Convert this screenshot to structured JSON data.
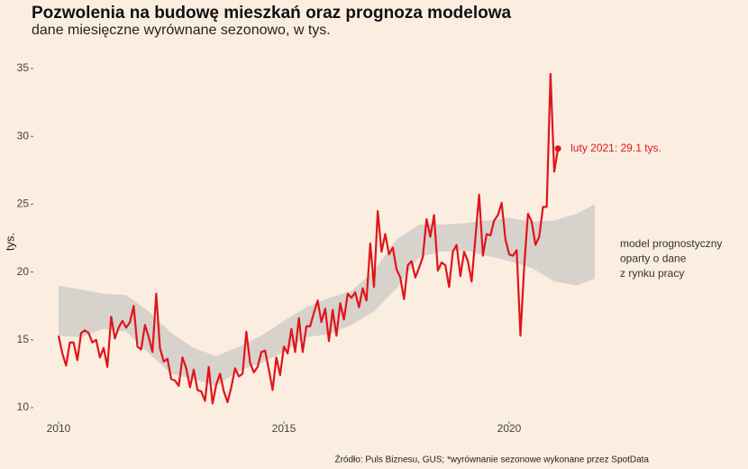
{
  "chart_data": {
    "type": "line",
    "title": "Pozwolenia na budowę mieszkań oraz prognoza modelowa",
    "subtitle": "dane miesięczne wyrównane sezonowo, w tys.",
    "y_label": "tys.",
    "source": "Źródło: Puls Biznesu, GUS; *wyrównanie sezonowe wykonane przez SpotData",
    "annotation": "luty 2021: 29.1 tys.",
    "x": [
      2010,
      2010.083,
      2010.167,
      2010.25,
      2010.333,
      2010.417,
      2010.5,
      2010.583,
      2010.667,
      2010.75,
      2010.833,
      2010.917,
      2011,
      2011.083,
      2011.167,
      2011.25,
      2011.333,
      2011.417,
      2011.5,
      2011.583,
      2011.667,
      2011.75,
      2011.833,
      2011.917,
      2012,
      2012.083,
      2012.167,
      2012.25,
      2012.333,
      2012.417,
      2012.5,
      2012.583,
      2012.667,
      2012.75,
      2012.833,
      2012.917,
      2013,
      2013.083,
      2013.167,
      2013.25,
      2013.333,
      2013.417,
      2013.5,
      2013.583,
      2013.667,
      2013.75,
      2013.833,
      2013.917,
      2014,
      2014.083,
      2014.167,
      2014.25,
      2014.333,
      2014.417,
      2014.5,
      2014.583,
      2014.667,
      2014.75,
      2014.833,
      2014.917,
      2015,
      2015.083,
      2015.167,
      2015.25,
      2015.333,
      2015.417,
      2015.5,
      2015.583,
      2015.667,
      2015.75,
      2015.833,
      2015.917,
      2016,
      2016.083,
      2016.167,
      2016.25,
      2016.333,
      2016.417,
      2016.5,
      2016.583,
      2016.667,
      2016.75,
      2016.833,
      2016.917,
      2017,
      2017.083,
      2017.167,
      2017.25,
      2017.333,
      2017.417,
      2017.5,
      2017.583,
      2017.667,
      2017.75,
      2017.833,
      2017.917,
      2018,
      2018.083,
      2018.167,
      2018.25,
      2018.333,
      2018.417,
      2018.5,
      2018.583,
      2018.667,
      2018.75,
      2018.833,
      2018.917,
      2019,
      2019.083,
      2019.167,
      2019.25,
      2019.333,
      2019.417,
      2019.5,
      2019.583,
      2019.667,
      2019.75,
      2019.833,
      2019.917,
      2020,
      2020.083,
      2020.167,
      2020.25,
      2020.333,
      2020.417,
      2020.5,
      2020.583,
      2020.667,
      2020.75,
      2020.833,
      2020.917,
      2021,
      2021.083
    ],
    "series": [
      {
        "color": "#e0151b",
        "values": [
          15.3,
          14,
          13.1,
          14.8,
          14.8,
          13.5,
          15.5,
          15.7,
          15.5,
          14.8,
          15,
          13.7,
          14.4,
          13,
          16.7,
          15.1,
          15.9,
          16.4,
          15.9,
          16.3,
          17.5,
          14.5,
          14.3,
          16.1,
          15.2,
          14.1,
          18.4,
          14.4,
          13.4,
          13.6,
          12.1,
          12,
          11.6,
          13.7,
          12.9,
          11.5,
          12.8,
          11.3,
          11.2,
          10.5,
          13,
          10.3,
          11.7,
          12.5,
          11.2,
          10.4,
          11.5,
          12.9,
          12.3,
          12.5,
          15.6,
          13.3,
          12.6,
          13,
          14.1,
          14.2,
          12.8,
          11.3,
          13.7,
          12.4,
          14.5,
          14,
          15.8,
          14.1,
          16.6,
          14.1,
          16,
          16,
          17,
          17.9,
          16.3,
          17.3,
          14.9,
          17.2,
          15.3,
          17.7,
          16.5,
          18.4,
          18.1,
          18.5,
          17.4,
          18.8,
          17.9,
          22.1,
          18.9,
          24.5,
          21.5,
          22.8,
          21.3,
          21.8,
          20.2,
          19.6,
          18,
          20.5,
          20.8,
          19.6,
          20.3,
          21.1,
          23.9,
          22.6,
          24.2,
          20.1,
          20.7,
          20.5,
          18.9,
          21.5,
          22,
          19.7,
          21.5,
          20.8,
          19.3,
          22.5,
          25.7,
          21.2,
          22.8,
          22.7,
          23.8,
          24.2,
          25.1,
          22.4,
          21.3,
          21.2,
          21.6,
          15.3,
          20.4,
          24.3,
          23.7,
          22,
          22.6,
          24.8,
          24.8,
          34.6,
          27.4,
          29.1
        ]
      }
    ],
    "band": {
      "color": "#d8d2cd",
      "label_lines": [
        "model prognostyczny",
        "oparty o dane",
        "z rynku pracy"
      ],
      "x": [
        2010,
        2010.5,
        2011,
        2011.5,
        2012,
        2012.5,
        2013,
        2013.5,
        2014,
        2014.5,
        2015,
        2015.5,
        2016,
        2016.5,
        2017,
        2017.5,
        2018,
        2018.5,
        2019,
        2019.5,
        2020,
        2020.5,
        2021,
        2021.5,
        2021.9
      ],
      "upper": [
        19.0,
        18.7,
        18.4,
        18.3,
        17.1,
        15.5,
        14.4,
        13.8,
        14.5,
        15.3,
        16.4,
        17.4,
        18.1,
        18.6,
        20.1,
        22.4,
        23.5,
        23.5,
        23.6,
        23.8,
        24.0,
        23.7,
        23.8,
        24.3,
        25.0
      ],
      "lower": [
        15.3,
        15.2,
        15.8,
        15.6,
        14.0,
        12.5,
        12.1,
        11.6,
        12.7,
        13.3,
        14.1,
        15.2,
        15.4,
        16.1,
        17.1,
        18.8,
        21.1,
        21.5,
        21.6,
        21.2,
        20.8,
        20.3,
        19.3,
        19.0,
        19.5
      ]
    },
    "xlim": [
      2009.5,
      2024.5
    ],
    "ylim": [
      9,
      35.5
    ],
    "xticks": [
      2010,
      2015,
      2020
    ],
    "yticks": [
      10,
      15,
      20,
      25,
      30,
      35
    ],
    "grid": false
  }
}
